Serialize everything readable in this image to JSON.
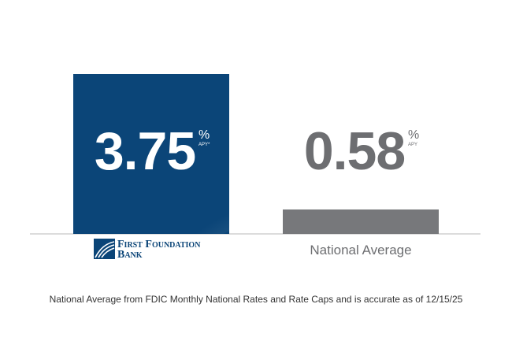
{
  "chart_data": {
    "type": "bar",
    "categories": [
      "First Foundation Bank",
      "National Average"
    ],
    "series": [
      {
        "values": [
          3.75,
          0.58
        ],
        "colors": [
          "#0b4578",
          "#77787b"
        ],
        "label_colors": [
          "#ffffff",
          "#6d6e71"
        ]
      }
    ],
    "unit_labels": [
      {
        "symbol": "%",
        "note": "APY*"
      },
      {
        "symbol": "%",
        "note": "APY"
      }
    ],
    "footnote": "National Average from FDIC Monthly National Rates and Rate Caps and is accurate as of 12/15/25"
  }
}
